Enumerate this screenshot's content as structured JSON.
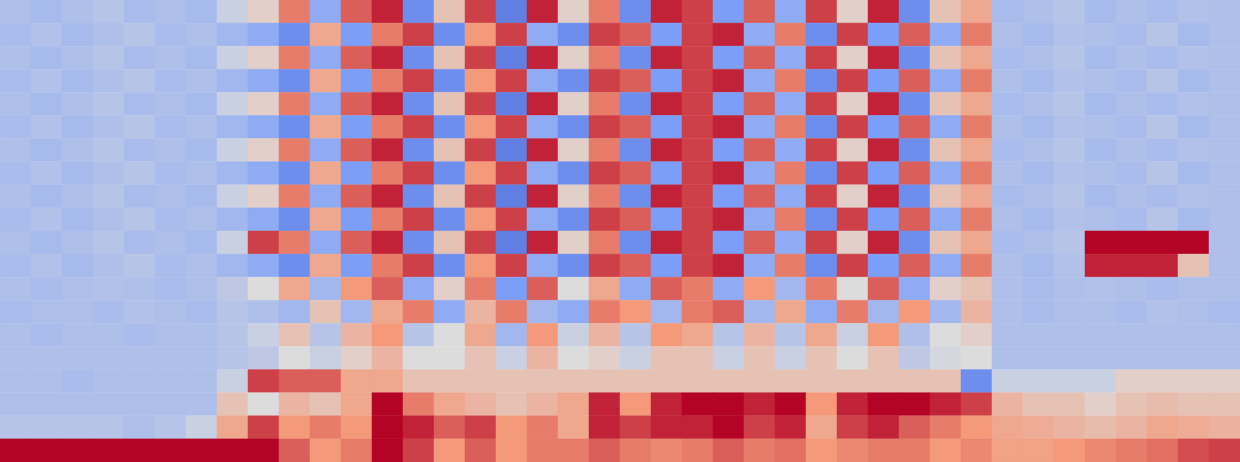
{
  "chart_data": {
    "type": "heatmap",
    "xlim": [
      0,
      40
    ],
    "ylim": [
      0,
      20
    ],
    "tick_labels": false,
    "clim": [
      0,
      1
    ],
    "cells": [
      [
        0.38,
        0.36,
        0.38,
        0.4,
        0.37,
        0.38,
        0.36,
        0.45,
        0.55,
        0.8,
        0.3,
        0.85,
        0.95,
        0.2,
        0.6,
        0.9,
        0.15,
        0.95,
        0.55,
        0.8,
        0.2,
        0.95,
        0.9,
        0.25,
        0.85,
        0.3,
        0.9,
        0.55,
        0.95,
        0.2,
        0.6,
        0.7,
        0.37,
        0.38,
        0.4,
        0.36,
        0.38,
        0.37,
        0.39,
        0.38
      ],
      [
        0.37,
        0.39,
        0.36,
        0.38,
        0.4,
        0.37,
        0.38,
        0.35,
        0.3,
        0.2,
        0.7,
        0.25,
        0.8,
        0.9,
        0.2,
        0.75,
        0.9,
        0.3,
        0.2,
        0.9,
        0.85,
        0.25,
        0.9,
        0.95,
        0.3,
        0.8,
        0.2,
        0.9,
        0.25,
        0.85,
        0.3,
        0.8,
        0.38,
        0.36,
        0.39,
        0.38,
        0.37,
        0.4,
        0.36,
        0.38
      ],
      [
        0.38,
        0.36,
        0.38,
        0.4,
        0.37,
        0.38,
        0.36,
        0.45,
        0.55,
        0.8,
        0.3,
        0.85,
        0.95,
        0.2,
        0.6,
        0.9,
        0.15,
        0.95,
        0.55,
        0.8,
        0.2,
        0.95,
        0.9,
        0.25,
        0.85,
        0.3,
        0.9,
        0.55,
        0.95,
        0.2,
        0.6,
        0.7,
        0.37,
        0.38,
        0.4,
        0.36,
        0.38,
        0.37,
        0.39,
        0.38
      ],
      [
        0.37,
        0.39,
        0.36,
        0.38,
        0.4,
        0.37,
        0.38,
        0.35,
        0.3,
        0.2,
        0.7,
        0.25,
        0.8,
        0.9,
        0.2,
        0.75,
        0.9,
        0.3,
        0.2,
        0.9,
        0.85,
        0.25,
        0.9,
        0.95,
        0.3,
        0.8,
        0.2,
        0.9,
        0.25,
        0.85,
        0.3,
        0.8,
        0.38,
        0.36,
        0.39,
        0.38,
        0.37,
        0.4,
        0.36,
        0.38
      ],
      [
        0.38,
        0.36,
        0.38,
        0.4,
        0.37,
        0.38,
        0.36,
        0.45,
        0.55,
        0.8,
        0.3,
        0.85,
        0.95,
        0.2,
        0.6,
        0.9,
        0.15,
        0.95,
        0.55,
        0.8,
        0.2,
        0.95,
        0.9,
        0.25,
        0.85,
        0.3,
        0.9,
        0.55,
        0.95,
        0.2,
        0.6,
        0.7,
        0.37,
        0.38,
        0.4,
        0.36,
        0.38,
        0.37,
        0.39,
        0.38
      ],
      [
        0.37,
        0.39,
        0.36,
        0.38,
        0.4,
        0.37,
        0.38,
        0.35,
        0.3,
        0.2,
        0.7,
        0.25,
        0.8,
        0.9,
        0.2,
        0.75,
        0.9,
        0.3,
        0.2,
        0.9,
        0.85,
        0.25,
        0.9,
        0.95,
        0.3,
        0.8,
        0.2,
        0.9,
        0.25,
        0.85,
        0.3,
        0.8,
        0.38,
        0.36,
        0.39,
        0.38,
        0.37,
        0.4,
        0.36,
        0.38
      ],
      [
        0.38,
        0.36,
        0.38,
        0.4,
        0.37,
        0.38,
        0.36,
        0.45,
        0.55,
        0.8,
        0.3,
        0.85,
        0.95,
        0.2,
        0.6,
        0.9,
        0.15,
        0.95,
        0.55,
        0.8,
        0.2,
        0.95,
        0.9,
        0.25,
        0.85,
        0.3,
        0.9,
        0.55,
        0.95,
        0.2,
        0.6,
        0.7,
        0.37,
        0.38,
        0.4,
        0.36,
        0.38,
        0.37,
        0.39,
        0.38
      ],
      [
        0.37,
        0.39,
        0.36,
        0.38,
        0.4,
        0.37,
        0.38,
        0.35,
        0.3,
        0.2,
        0.7,
        0.25,
        0.8,
        0.9,
        0.2,
        0.75,
        0.9,
        0.3,
        0.2,
        0.9,
        0.85,
        0.25,
        0.9,
        0.95,
        0.3,
        0.8,
        0.2,
        0.9,
        0.25,
        0.85,
        0.3,
        0.8,
        0.38,
        0.36,
        0.39,
        0.38,
        0.37,
        0.4,
        0.36,
        0.38
      ],
      [
        0.38,
        0.36,
        0.38,
        0.4,
        0.37,
        0.38,
        0.36,
        0.45,
        0.55,
        0.8,
        0.3,
        0.85,
        0.95,
        0.2,
        0.6,
        0.9,
        0.15,
        0.95,
        0.55,
        0.8,
        0.2,
        0.95,
        0.9,
        0.25,
        0.85,
        0.3,
        0.9,
        0.55,
        0.95,
        0.2,
        0.6,
        0.7,
        0.37,
        0.38,
        0.4,
        0.36,
        0.38,
        0.37,
        0.39,
        0.38
      ],
      [
        0.37,
        0.39,
        0.36,
        0.38,
        0.4,
        0.37,
        0.38,
        0.35,
        0.3,
        0.2,
        0.7,
        0.25,
        0.8,
        0.9,
        0.2,
        0.75,
        0.9,
        0.3,
        0.2,
        0.9,
        0.85,
        0.25,
        0.9,
        0.95,
        0.3,
        0.8,
        0.2,
        0.9,
        0.25,
        0.85,
        0.3,
        0.8,
        0.38,
        0.36,
        0.39,
        0.38,
        0.37,
        0.4,
        0.36,
        0.38
      ],
      [
        0.38,
        0.36,
        0.38,
        0.4,
        0.37,
        0.38,
        0.36,
        0.45,
        0.9,
        0.8,
        0.3,
        0.85,
        0.95,
        0.2,
        0.6,
        0.9,
        0.15,
        0.95,
        0.55,
        0.8,
        0.2,
        0.95,
        0.9,
        0.25,
        0.85,
        0.3,
        0.9,
        0.55,
        0.95,
        0.2,
        0.6,
        0.7,
        0.37,
        0.38,
        0.4,
        1.0,
        1.0,
        1.0,
        1.0,
        0.38
      ],
      [
        0.37,
        0.39,
        0.36,
        0.38,
        0.4,
        0.37,
        0.38,
        0.35,
        0.3,
        0.2,
        0.7,
        0.25,
        0.8,
        0.9,
        0.2,
        0.75,
        0.9,
        0.3,
        0.2,
        0.9,
        0.85,
        0.25,
        0.9,
        0.95,
        0.3,
        0.8,
        0.2,
        0.9,
        0.25,
        0.85,
        0.3,
        0.8,
        0.38,
        0.36,
        0.39,
        0.95,
        0.95,
        0.95,
        0.6,
        0.38
      ],
      [
        0.38,
        0.37,
        0.38,
        0.39,
        0.38,
        0.37,
        0.38,
        0.42,
        0.5,
        0.7,
        0.35,
        0.75,
        0.85,
        0.3,
        0.55,
        0.8,
        0.25,
        0.85,
        0.5,
        0.7,
        0.3,
        0.85,
        0.8,
        0.3,
        0.75,
        0.35,
        0.8,
        0.5,
        0.85,
        0.3,
        0.55,
        0.6,
        0.38,
        0.37,
        0.38,
        0.39,
        0.38,
        0.37,
        0.38,
        0.38
      ],
      [
        0.37,
        0.38,
        0.38,
        0.37,
        0.39,
        0.38,
        0.37,
        0.4,
        0.38,
        0.35,
        0.6,
        0.35,
        0.7,
        0.8,
        0.3,
        0.65,
        0.8,
        0.35,
        0.3,
        0.8,
        0.75,
        0.35,
        0.8,
        0.85,
        0.35,
        0.7,
        0.3,
        0.8,
        0.35,
        0.75,
        0.35,
        0.65,
        0.38,
        0.37,
        0.38,
        0.38,
        0.37,
        0.39,
        0.38,
        0.37
      ],
      [
        0.38,
        0.37,
        0.38,
        0.38,
        0.37,
        0.38,
        0.38,
        0.4,
        0.45,
        0.6,
        0.4,
        0.65,
        0.75,
        0.4,
        0.5,
        0.7,
        0.35,
        0.75,
        0.45,
        0.65,
        0.4,
        0.75,
        0.7,
        0.4,
        0.65,
        0.4,
        0.7,
        0.45,
        0.75,
        0.38,
        0.5,
        0.55,
        0.38,
        0.38,
        0.38,
        0.38,
        0.38,
        0.38,
        0.38,
        0.38
      ],
      [
        0.38,
        0.38,
        0.38,
        0.38,
        0.38,
        0.38,
        0.38,
        0.4,
        0.42,
        0.5,
        0.45,
        0.55,
        0.65,
        0.5,
        0.5,
        0.6,
        0.45,
        0.65,
        0.5,
        0.55,
        0.45,
        0.6,
        0.6,
        0.45,
        0.6,
        0.45,
        0.6,
        0.5,
        0.6,
        0.42,
        0.48,
        0.5,
        0.38,
        0.38,
        0.38,
        0.38,
        0.38,
        0.38,
        0.38,
        0.38
      ],
      [
        0.38,
        0.38,
        0.37,
        0.38,
        0.38,
        0.38,
        0.38,
        0.45,
        0.9,
        0.85,
        0.85,
        0.7,
        0.7,
        0.6,
        0.6,
        0.6,
        0.6,
        0.6,
        0.6,
        0.6,
        0.6,
        0.6,
        0.6,
        0.6,
        0.6,
        0.6,
        0.6,
        0.6,
        0.6,
        0.6,
        0.6,
        0.2,
        0.45,
        0.45,
        0.45,
        0.45,
        0.55,
        0.55,
        0.55,
        0.55
      ],
      [
        0.38,
        0.38,
        0.38,
        0.38,
        0.38,
        0.38,
        0.38,
        0.6,
        0.5,
        0.65,
        0.6,
        0.7,
        1.0,
        0.8,
        0.7,
        0.65,
        0.6,
        0.65,
        0.7,
        0.95,
        0.75,
        0.95,
        1.0,
        1.0,
        0.95,
        1.0,
        0.75,
        0.95,
        1.0,
        1.0,
        0.95,
        0.9,
        0.65,
        0.6,
        0.6,
        0.55,
        0.6,
        0.62,
        0.6,
        0.6
      ],
      [
        0.4,
        0.4,
        0.4,
        0.4,
        0.38,
        0.4,
        0.45,
        0.7,
        0.9,
        0.75,
        0.8,
        0.75,
        1.0,
        0.95,
        0.85,
        0.9,
        0.75,
        0.8,
        0.7,
        0.95,
        0.9,
        0.95,
        0.95,
        1.0,
        0.9,
        0.95,
        0.7,
        0.9,
        0.95,
        0.85,
        0.8,
        0.75,
        0.7,
        0.68,
        0.65,
        0.62,
        0.65,
        0.7,
        0.68,
        0.66
      ],
      [
        1.0,
        1.0,
        1.0,
        1.0,
        1.0,
        1.0,
        1.0,
        1.0,
        1.0,
        0.85,
        0.75,
        0.8,
        1.0,
        0.9,
        0.75,
        0.85,
        0.75,
        0.8,
        0.8,
        0.85,
        0.8,
        0.78,
        0.8,
        0.85,
        0.8,
        0.82,
        0.75,
        0.78,
        0.8,
        0.8,
        0.75,
        0.78,
        0.72,
        0.72,
        0.75,
        0.78,
        0.8,
        0.82,
        0.88,
        0.9
      ]
    ]
  }
}
